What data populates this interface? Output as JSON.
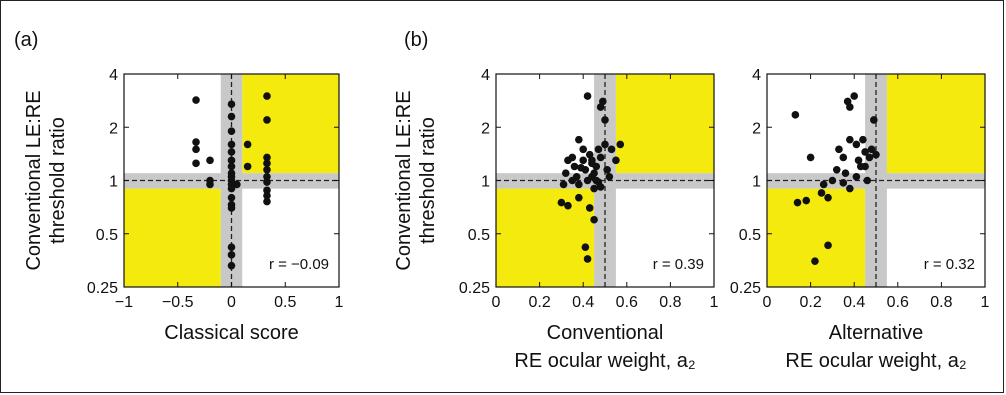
{
  "colors": {
    "quadrant_fill": "#f4ea0e",
    "band_fill": "#c8c8c8",
    "point": "#111111",
    "axis": "#111111"
  },
  "chart_data": [
    {
      "panel": "(a)",
      "type": "scatter",
      "xlabel": "Classical score",
      "xlabel_sub": "",
      "ylabel_lines": [
        "Conventional LE:RE",
        "threshold ratio"
      ],
      "xlim": [
        -1,
        1
      ],
      "ylim": [
        0.25,
        4
      ],
      "yscale": "log2",
      "xticks": [
        -1,
        -0.5,
        0,
        0.5,
        1
      ],
      "xtick_labels": [
        "−1",
        "−0.5",
        "0",
        "0.5",
        "1"
      ],
      "yticks": [
        0.25,
        0.5,
        1,
        2,
        4
      ],
      "ytick_labels": [
        "0.25",
        "0.5",
        "1",
        "2",
        "4"
      ],
      "shaded_quadrants": [
        [
          0.1,
          1,
          1.1,
          4
        ],
        [
          -1,
          -0.1,
          0.25,
          0.9
        ]
      ],
      "vertical_band": [
        -0.1,
        0.1
      ],
      "horizontal_band": [
        0.9,
        1.1
      ],
      "vline": 0,
      "hline": 1,
      "annotation": "r = −0.09",
      "points": [
        [
          -0.33,
          2.85
        ],
        [
          -0.33,
          1.65
        ],
        [
          -0.33,
          1.5
        ],
        [
          -0.33,
          1.25
        ],
        [
          -0.2,
          1.3
        ],
        [
          -0.2,
          1.0
        ],
        [
          -0.2,
          0.95
        ],
        [
          0,
          2.7
        ],
        [
          0,
          2.3
        ],
        [
          0,
          1.9
        ],
        [
          0,
          1.6
        ],
        [
          0,
          1.45
        ],
        [
          0,
          1.3
        ],
        [
          0,
          1.2
        ],
        [
          0,
          1.1
        ],
        [
          0,
          1.05
        ],
        [
          0,
          1.0
        ],
        [
          0,
          0.95
        ],
        [
          0,
          0.9
        ],
        [
          0,
          0.8
        ],
        [
          0,
          0.73
        ],
        [
          0,
          0.7
        ],
        [
          0,
          0.42
        ],
        [
          0,
          0.38
        ],
        [
          0,
          0.33
        ],
        [
          0.05,
          0.95
        ],
        [
          0.15,
          1.6
        ],
        [
          0.15,
          1.2
        ],
        [
          0.33,
          3.0
        ],
        [
          0.33,
          2.2
        ],
        [
          0.33,
          1.35
        ],
        [
          0.33,
          1.25
        ],
        [
          0.33,
          1.15
        ],
        [
          0.33,
          1.05
        ],
        [
          0.33,
          0.98
        ],
        [
          0.33,
          0.88
        ],
        [
          0.33,
          0.82
        ],
        [
          0.33,
          0.76
        ]
      ]
    },
    {
      "panel": "(b)",
      "type": "scatter",
      "xlabel": "Conventional",
      "xlabel_sub": "RE ocular weight, a₂",
      "ylabel_lines": [
        "Conventional LE:RE",
        "threshold ratio"
      ],
      "xlim": [
        0,
        1
      ],
      "ylim": [
        0.25,
        4
      ],
      "yscale": "log2",
      "xticks": [
        0,
        0.2,
        0.4,
        0.6,
        0.8,
        1
      ],
      "xtick_labels": [
        "0",
        "0.2",
        "0.4",
        "0.6",
        "0.8",
        "1"
      ],
      "yticks": [
        0.25,
        0.5,
        1,
        2,
        4
      ],
      "ytick_labels": [
        "0.25",
        "0.5",
        "1",
        "2",
        "4"
      ],
      "shaded_quadrants": [
        [
          0.55,
          1,
          1.1,
          4
        ],
        [
          0,
          0.45,
          0.25,
          0.9
        ]
      ],
      "vertical_band": [
        0.45,
        0.55
      ],
      "horizontal_band": [
        0.9,
        1.1
      ],
      "vline": 0.5,
      "hline": 1,
      "annotation": "r = 0.39",
      "points": [
        [
          0.3,
          0.75
        ],
        [
          0.33,
          0.72
        ],
        [
          0.31,
          0.95
        ],
        [
          0.32,
          1.1
        ],
        [
          0.33,
          1.3
        ],
        [
          0.35,
          1.35
        ],
        [
          0.36,
          1.2
        ],
        [
          0.37,
          1.05
        ],
        [
          0.38,
          0.95
        ],
        [
          0.38,
          1.7
        ],
        [
          0.4,
          1.5
        ],
        [
          0.4,
          1.3
        ],
        [
          0.41,
          1.15
        ],
        [
          0.42,
          1.0
        ],
        [
          0.42,
          3.0
        ],
        [
          0.43,
          1.4
        ],
        [
          0.44,
          1.25
        ],
        [
          0.44,
          1.05
        ],
        [
          0.45,
          0.9
        ],
        [
          0.45,
          1.1
        ],
        [
          0.46,
          1.2
        ],
        [
          0.46,
          1.0
        ],
        [
          0.47,
          0.98
        ],
        [
          0.48,
          0.92
        ],
        [
          0.48,
          1.35
        ],
        [
          0.48,
          2.6
        ],
        [
          0.49,
          2.8
        ],
        [
          0.5,
          2.2
        ],
        [
          0.5,
          1.6
        ],
        [
          0.51,
          1.15
        ],
        [
          0.52,
          1.05
        ],
        [
          0.53,
          1.5
        ],
        [
          0.55,
          1.3
        ],
        [
          0.57,
          1.6
        ],
        [
          0.45,
          0.6
        ],
        [
          0.43,
          0.7
        ],
        [
          0.41,
          0.42
        ],
        [
          0.42,
          0.36
        ],
        [
          0.38,
          0.8
        ],
        [
          0.35,
          1.0
        ],
        [
          0.47,
          1.5
        ],
        [
          0.44,
          1.3
        ],
        [
          0.39,
          1.18
        ]
      ]
    },
    {
      "panel": "",
      "type": "scatter",
      "xlabel": "Alternative",
      "xlabel_sub": "RE ocular weight, a₂",
      "ylabel_lines": [],
      "xlim": [
        0,
        1
      ],
      "ylim": [
        0.25,
        4
      ],
      "yscale": "log2",
      "xticks": [
        0,
        0.2,
        0.4,
        0.6,
        0.8,
        1
      ],
      "xtick_labels": [
        "0",
        "0.2",
        "0.4",
        "0.6",
        "0.8",
        "1"
      ],
      "yticks": [
        0.25,
        0.5,
        1,
        2,
        4
      ],
      "ytick_labels": [
        "0.25",
        "0.5",
        "1",
        "2",
        "4"
      ],
      "shaded_quadrants": [
        [
          0.55,
          1,
          1.1,
          4
        ],
        [
          0,
          0.45,
          0.25,
          0.9
        ]
      ],
      "vertical_band": [
        0.45,
        0.55
      ],
      "horizontal_band": [
        0.9,
        1.1
      ],
      "vline": 0.5,
      "hline": 1,
      "annotation": "r = 0.32",
      "points": [
        [
          0.13,
          2.35
        ],
        [
          0.14,
          0.75
        ],
        [
          0.18,
          0.77
        ],
        [
          0.22,
          0.35
        ],
        [
          0.2,
          1.35
        ],
        [
          0.25,
          0.85
        ],
        [
          0.26,
          0.95
        ],
        [
          0.28,
          0.8
        ],
        [
          0.28,
          0.43
        ],
        [
          0.3,
          1.0
        ],
        [
          0.32,
          1.15
        ],
        [
          0.33,
          1.5
        ],
        [
          0.35,
          1.35
        ],
        [
          0.36,
          1.1
        ],
        [
          0.37,
          2.8
        ],
        [
          0.38,
          2.6
        ],
        [
          0.38,
          1.7
        ],
        [
          0.4,
          3.0
        ],
        [
          0.41,
          1.6
        ],
        [
          0.42,
          1.3
        ],
        [
          0.43,
          1.2
        ],
        [
          0.44,
          1.7
        ],
        [
          0.45,
          1.45
        ],
        [
          0.46,
          1.0
        ],
        [
          0.47,
          1.35
        ],
        [
          0.48,
          1.5
        ],
        [
          0.49,
          2.2
        ],
        [
          0.5,
          1.4
        ],
        [
          0.38,
          0.9
        ],
        [
          0.41,
          1.05
        ],
        [
          0.45,
          1.2
        ],
        [
          0.35,
          0.97
        ]
      ]
    }
  ]
}
